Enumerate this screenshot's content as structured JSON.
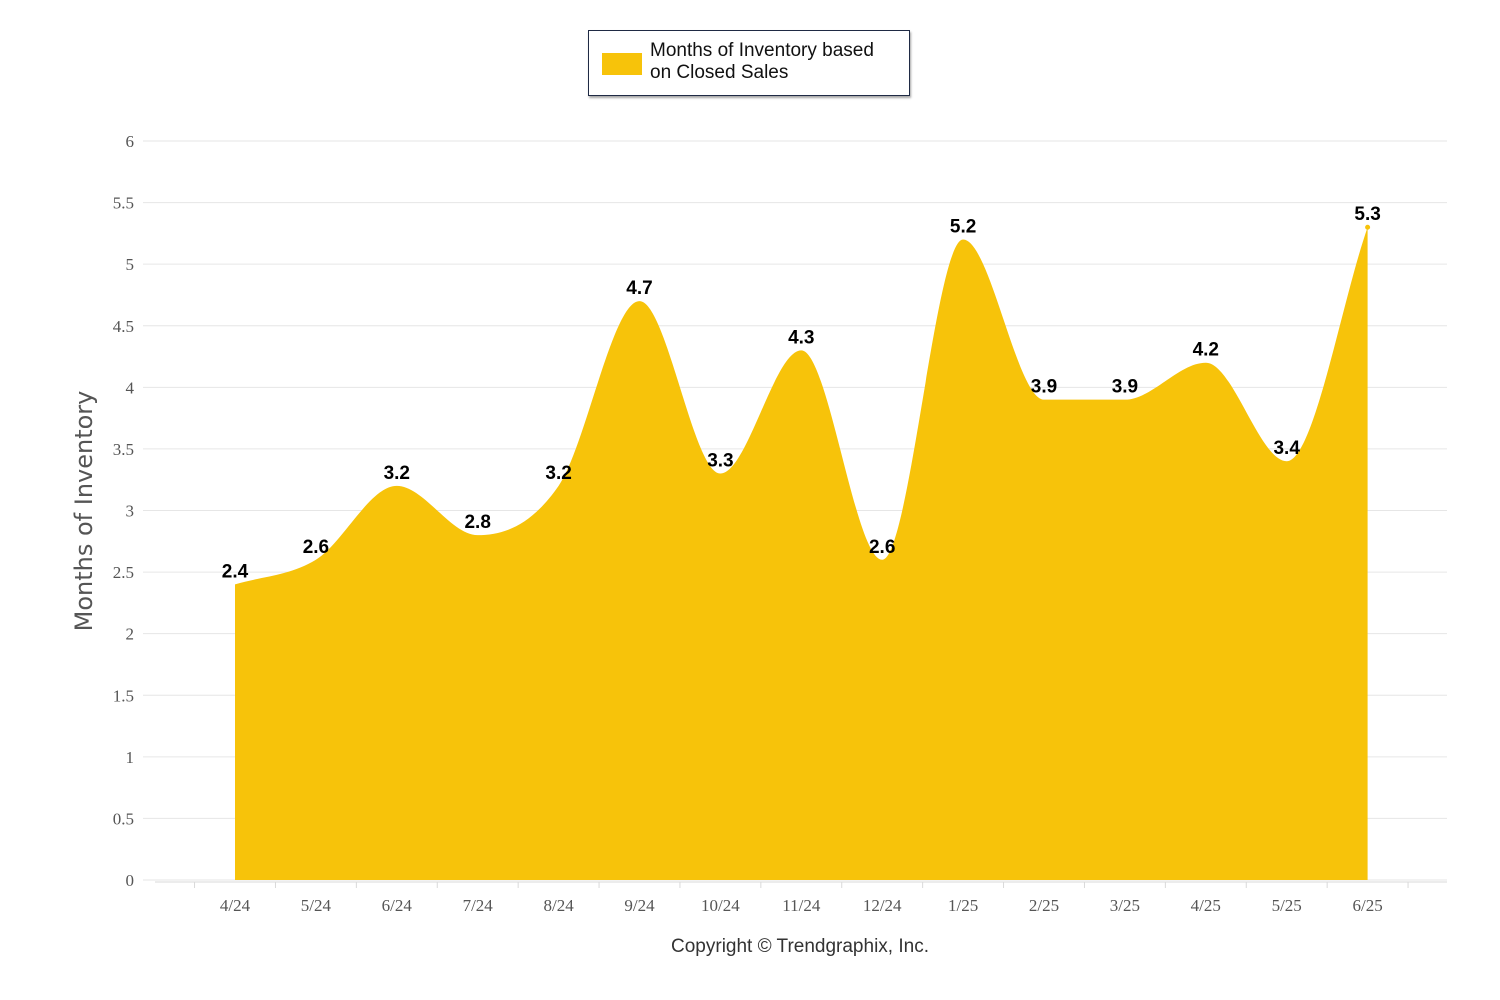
{
  "chart_data": {
    "type": "area",
    "categories": [
      "4/24",
      "5/24",
      "6/24",
      "7/24",
      "8/24",
      "9/24",
      "10/24",
      "11/24",
      "12/24",
      "1/25",
      "2/25",
      "3/25",
      "4/25",
      "5/25",
      "6/25"
    ],
    "series": [
      {
        "name": "Months of Inventory based on Closed Sales",
        "values": [
          2.4,
          2.6,
          3.2,
          2.8,
          3.2,
          4.7,
          3.3,
          4.3,
          2.6,
          5.2,
          3.9,
          3.9,
          4.2,
          3.4,
          5.3
        ],
        "color": "#F7C30A"
      }
    ],
    "ylabel": "Months of Inventory",
    "ylim": [
      0,
      6
    ],
    "yticks": [
      "0",
      "0.5",
      "1",
      "1.5",
      "2",
      "2.5",
      "3",
      "3.5",
      "4",
      "4.5",
      "5",
      "5.5",
      "6"
    ],
    "grid": true,
    "legend": "top-center",
    "data_labels": true
  },
  "legend": {
    "line1": "Months of Inventory based",
    "line2": "on Closed Sales"
  },
  "footer": {
    "copyright": "Copyright © Trendgraphix, Inc."
  },
  "colors": {
    "area": "#F7C30A",
    "grid": "#e6e6e6",
    "axis_text": "#555555"
  }
}
